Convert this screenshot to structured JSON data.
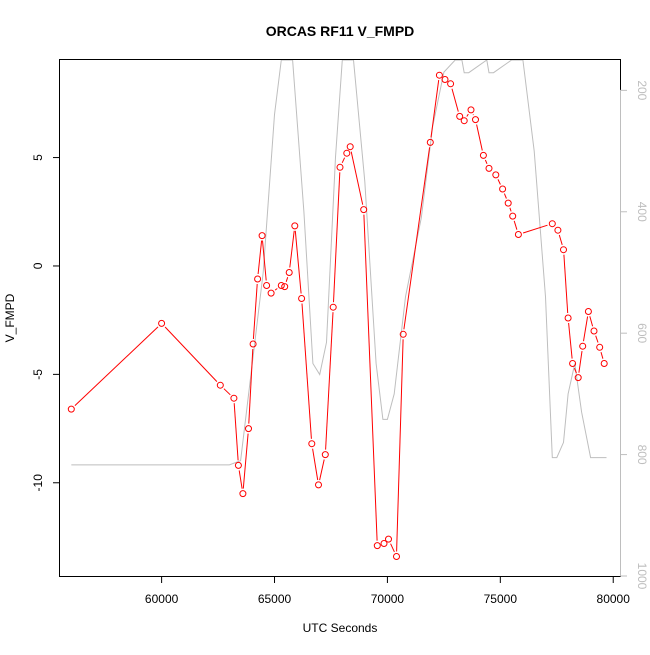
{
  "chart_data": {
    "type": "line",
    "title": "ORCAS RF11 V_FMPD",
    "xlabel": "UTC Seconds",
    "ylabel": "V_FMPD",
    "xlim": [
      55500,
      80300
    ],
    "ylim": [
      -14.3,
      9.5
    ],
    "xticks": [
      60000,
      65000,
      70000,
      75000,
      80000
    ],
    "xtick_labels": [
      "60000",
      "65000",
      "70000",
      "75000",
      "80000"
    ],
    "yticks": [
      -10,
      -5,
      0,
      5
    ],
    "ytick_labels": [
      "-10",
      "-5",
      "0",
      "5"
    ],
    "y2lim": [
      1000,
      150
    ],
    "y2ticks": [
      200,
      400,
      600,
      800,
      1000
    ],
    "y2tick_labels": [
      "200",
      "400",
      "600",
      "800",
      "1000"
    ],
    "grid": false,
    "series": [
      {
        "color": "#ff0000",
        "line": true,
        "markers": "open-circle",
        "x": [
          56000,
          60000,
          62600,
          63200,
          63400,
          63600,
          63850,
          64050,
          64250,
          64450,
          64650,
          64850,
          65300,
          65450,
          65650,
          65900,
          66200,
          66650,
          66950,
          67250,
          67600,
          67900,
          68200,
          68350,
          68950,
          69550,
          69850,
          70050,
          70400,
          70700,
          71900,
          72300,
          72550,
          72800,
          73200,
          73400,
          73700,
          73900,
          74250,
          74500,
          74800,
          75100,
          75350,
          75550,
          75800,
          77300,
          77550,
          77800,
          78000,
          78200,
          78450,
          78650,
          78900,
          79150,
          79400,
          79600
        ],
        "y": [
          -6.6,
          -2.65,
          -5.5,
          -6.1,
          -9.2,
          -10.5,
          -7.5,
          -3.6,
          -0.6,
          1.4,
          -0.9,
          -1.25,
          -0.9,
          -0.95,
          -0.3,
          1.85,
          -1.5,
          -8.2,
          -10.1,
          -8.7,
          -1.9,
          4.55,
          5.2,
          5.5,
          2.6,
          -12.9,
          -12.8,
          -12.6,
          -13.4,
          -3.15,
          5.7,
          8.8,
          8.6,
          8.4,
          6.9,
          6.7,
          7.2,
          6.75,
          5.1,
          4.5,
          4.2,
          3.55,
          2.9,
          2.3,
          1.45,
          1.95,
          1.65,
          0.75,
          -2.4,
          -4.5,
          -5.15,
          -3.7,
          -2.1,
          -3.0,
          -3.75,
          -4.5
        ]
      },
      {
        "color": "#bebebe",
        "axis": "right",
        "line": true,
        "markers": "none",
        "x": [
          56000,
          60000,
          63000,
          63500,
          64500,
          65000,
          65300,
          65800,
          66300,
          66700,
          67000,
          67300,
          67700,
          68000,
          68500,
          69000,
          69500,
          69800,
          70000,
          70300,
          70800,
          71500,
          72000,
          72500,
          73000,
          73300,
          73400,
          73600,
          74400,
          74500,
          74700,
          75500,
          76000,
          76500,
          77000,
          77300,
          77500,
          77800,
          78000,
          78300,
          78600,
          79000,
          79700
        ],
        "y2": [
          817,
          817,
          817,
          810,
          500,
          240,
          150,
          150,
          400,
          650,
          668,
          615,
          310,
          150,
          150,
          350,
          650,
          742,
          742,
          700,
          540,
          410,
          260,
          170,
          150,
          150,
          171,
          171,
          150,
          171,
          171,
          150,
          150,
          300,
          540,
          805,
          805,
          780,
          700,
          650,
          730,
          805,
          805
        ]
      }
    ]
  }
}
